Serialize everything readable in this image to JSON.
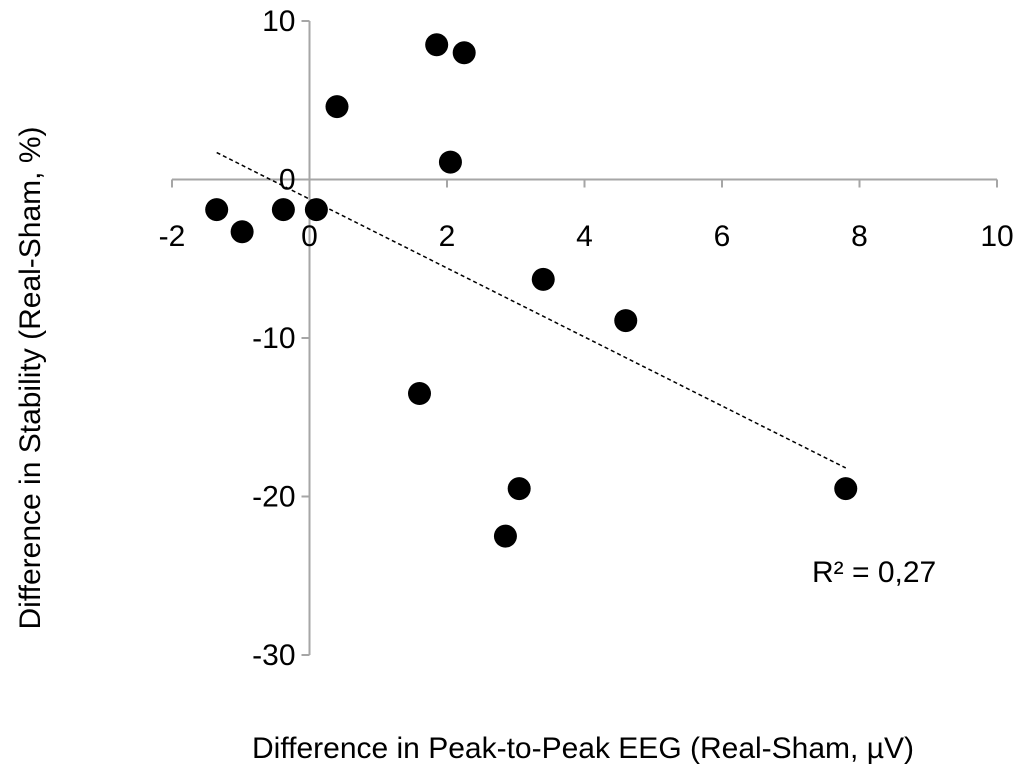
{
  "chart_data": {
    "type": "scatter",
    "title": "",
    "xlabel": "Difference in Peak-to-Peak EEG (Real-Sham, µV)",
    "ylabel": "Difference in Stability  (Real-Sham, %)",
    "xlim": [
      -2,
      10
    ],
    "ylim": [
      -30,
      10
    ],
    "x_ticks": [
      -2,
      0,
      2,
      4,
      6,
      8,
      10
    ],
    "y_ticks": [
      10,
      0,
      -10,
      -20,
      -30
    ],
    "x_tick_labels": [
      "-2",
      "0",
      "2",
      "4",
      "6",
      "8",
      "10"
    ],
    "y_tick_labels": [
      "10",
      "0",
      "-10",
      "-20",
      "-30"
    ],
    "grid": false,
    "legend": "none",
    "points": [
      {
        "x": -1.35,
        "y": -1.9
      },
      {
        "x": -0.98,
        "y": -3.3
      },
      {
        "x": -0.38,
        "y": -1.9
      },
      {
        "x": 0.1,
        "y": -1.9
      },
      {
        "x": 0.4,
        "y": 4.6
      },
      {
        "x": 1.6,
        "y": -13.5
      },
      {
        "x": 1.85,
        "y": 8.5
      },
      {
        "x": 2.05,
        "y": 1.1
      },
      {
        "x": 2.25,
        "y": 8.0
      },
      {
        "x": 2.85,
        "y": -22.5
      },
      {
        "x": 3.05,
        "y": -19.5
      },
      {
        "x": 3.4,
        "y": -6.3
      },
      {
        "x": 4.6,
        "y": -8.9
      },
      {
        "x": 7.8,
        "y": -19.5
      }
    ],
    "trendline": {
      "style": "dashed",
      "from": {
        "x": -1.35,
        "y": 1.7
      },
      "to": {
        "x": 7.8,
        "y": -18.2
      }
    },
    "annotation": "R² = 0,27",
    "colors": {
      "point": "#000000",
      "axis": "#a6a6a6",
      "trendline": "#000000",
      "text": "#000000"
    }
  }
}
